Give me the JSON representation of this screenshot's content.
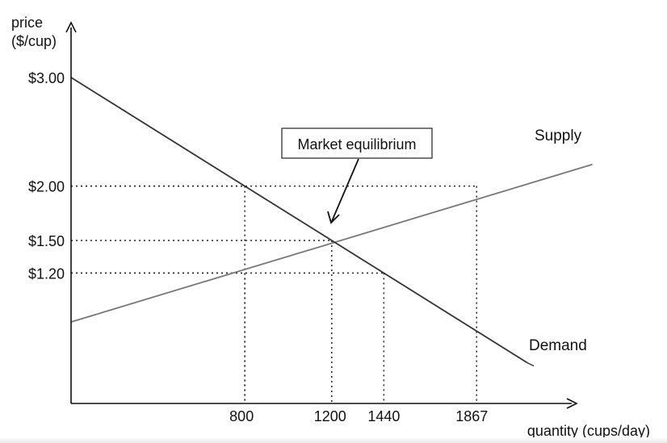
{
  "chart_data": {
    "type": "line",
    "y_axis_label_line1": "price",
    "y_axis_label_line2": "($/cup)",
    "xlabel": "quantity (cups/day)",
    "y_ticks": [
      {
        "value": 3.0,
        "label": "$3.00"
      },
      {
        "value": 2.0,
        "label": "$2.00"
      },
      {
        "value": 1.5,
        "label": "$1.50"
      },
      {
        "value": 1.2,
        "label": "$1.20"
      }
    ],
    "x_ticks": [
      {
        "value": 800,
        "label": "800"
      },
      {
        "value": 1200,
        "label": "1200"
      },
      {
        "value": 1440,
        "label": "1440"
      },
      {
        "value": 1867,
        "label": "1867"
      }
    ],
    "xlim": [
      0,
      2400
    ],
    "ylim": [
      0,
      3.4
    ],
    "series": [
      {
        "name": "Supply",
        "color": "#777777",
        "points": [
          [
            0,
            0.75
          ],
          [
            2400,
            2.2
          ]
        ]
      },
      {
        "name": "Demand",
        "color": "#333333",
        "points": [
          [
            0,
            3.0
          ],
          [
            2100,
            0.375
          ]
        ]
      }
    ],
    "guides": [
      {
        "x": 800,
        "y": 2.0
      },
      {
        "x": 1867,
        "y": 2.0
      },
      {
        "x": 1200,
        "y": 1.5
      },
      {
        "x": 800,
        "y": 1.2
      },
      {
        "x": 1440,
        "y": 1.2
      }
    ],
    "annotation": {
      "text": "Market equilibrium",
      "x": 1200,
      "y": 1.5
    }
  }
}
